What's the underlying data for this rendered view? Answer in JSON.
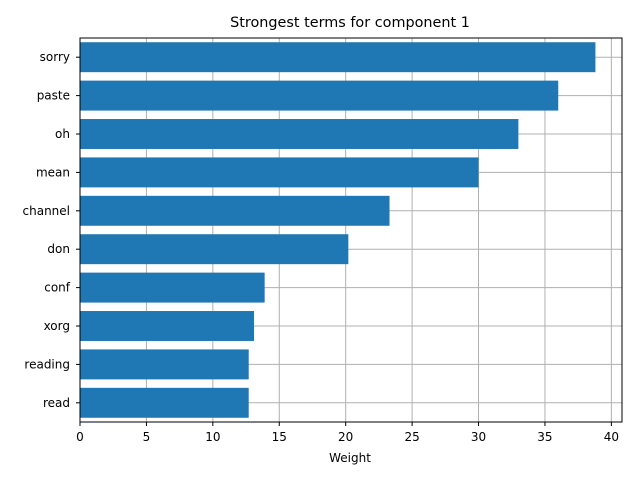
{
  "chart_data": {
    "type": "bar",
    "orientation": "horizontal",
    "title": "Strongest terms for component 1",
    "xlabel": "Weight",
    "ylabel": "",
    "categories": [
      "sorry",
      "paste",
      "oh",
      "mean",
      "channel",
      "don",
      "conf",
      "xorg",
      "reading",
      "read"
    ],
    "values": [
      38.8,
      36.0,
      33.0,
      30.0,
      23.3,
      20.2,
      13.9,
      13.1,
      12.7,
      12.7
    ],
    "xlim": [
      0,
      40.8
    ],
    "xticks": [
      0,
      5,
      10,
      15,
      20,
      25,
      30,
      35,
      40
    ],
    "grid": true,
    "bar_color": "#1f77b4",
    "grid_color": "#b0b0b0"
  }
}
